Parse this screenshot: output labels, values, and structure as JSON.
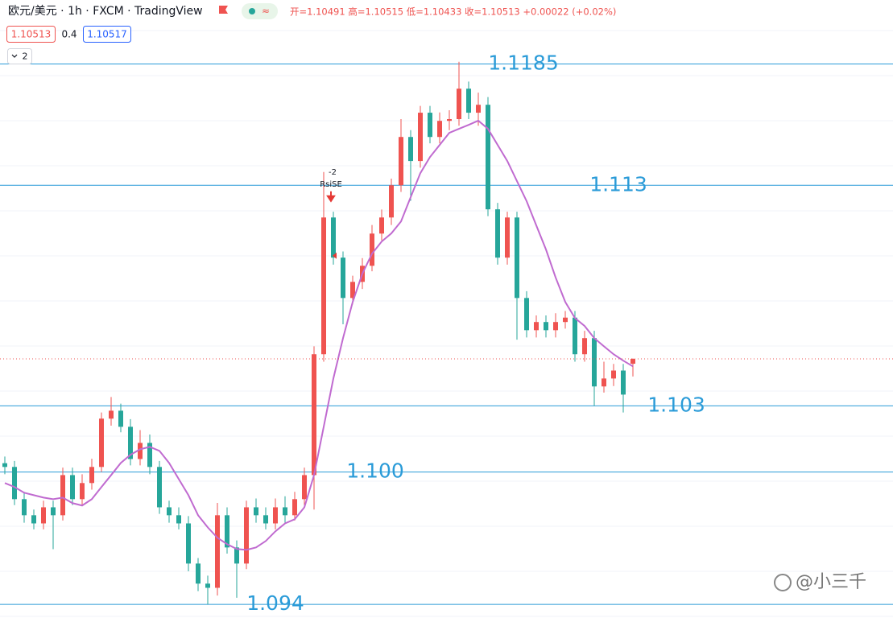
{
  "chart_data": {
    "type": "candlestick",
    "title": "欧元/美元 · 1h · FXCM · TradingView",
    "ohlc_text": "开=1.10491 高=1.10515 低=1.10433 收=1.10513 +0.00022 (+0.02%)",
    "bid": 1.10513,
    "spread": 0.4,
    "ask": 1.10517,
    "indicator_count": 2,
    "signal": {
      "value": -2,
      "label": "RsiSE"
    },
    "open": [
      1.1004,
      1.10023,
      1.09877,
      1.09804,
      1.09767,
      1.0984,
      1.09804,
      1.09986,
      1.09877,
      1.0995,
      1.10023,
      1.10242,
      1.10278,
      1.10205,
      1.10059,
      1.10132,
      1.10023,
      1.0984,
      1.09804,
      1.09767,
      1.09585,
      1.09494,
      1.09475,
      1.09804,
      1.09658,
      1.09585,
      1.0984,
      1.09804,
      1.09767,
      1.0984,
      1.09804,
      1.09877,
      1.09986,
      1.10534,
      1.11154,
      1.10972,
      1.10789,
      1.10862,
      1.10935,
      1.11081,
      1.11154,
      1.113,
      1.11519,
      1.1141,
      1.11629,
      1.11519,
      1.11592,
      1.116,
      1.11738,
      1.11629,
      1.11665,
      1.11191,
      1.10972,
      1.11154,
      1.10789,
      1.10643,
      1.1068,
      1.10643,
      1.1068,
      1.107,
      1.10534,
      1.10607,
      1.10388,
      1.10424,
      1.1046,
      1.10491
    ],
    "high": [
      1.1007,
      1.1005,
      1.0991,
      1.0983,
      1.0987,
      1.0987,
      1.1002,
      1.1002,
      1.0999,
      1.1006,
      1.1027,
      1.1034,
      1.1031,
      1.1024,
      1.1019,
      1.1017,
      1.1005,
      1.0987,
      1.0984,
      1.098,
      1.0961,
      1.0953,
      1.0986,
      1.0984,
      1.0969,
      1.0987,
      1.0988,
      1.0984,
      1.0988,
      1.0989,
      1.0991,
      1.1002,
      1.1057,
      1.1136,
      1.1118,
      1.11,
      1.1089,
      1.1097,
      1.1112,
      1.1119,
      1.1133,
      1.116,
      1.1155,
      1.1166,
      1.1166,
      1.1163,
      1.1164,
      1.1186,
      1.1177,
      1.1172,
      1.117,
      1.1122,
      1.1118,
      1.1118,
      1.1082,
      1.1071,
      1.1071,
      1.1072,
      1.1073,
      1.1073,
      1.1064,
      1.1064,
      1.105,
      1.1049,
      1.1049,
      1.10515
    ],
    "low": [
      1.0999,
      1.0985,
      1.0977,
      1.0974,
      1.0974,
      1.0965,
      1.0978,
      1.0985,
      1.0985,
      1.0992,
      1.1,
      1.1021,
      1.1018,
      1.1003,
      1.1003,
      1.0999,
      1.0981,
      1.0977,
      1.0974,
      1.0955,
      1.0946,
      1.094,
      1.0944,
      1.0963,
      1.0943,
      1.0956,
      1.0977,
      1.0974,
      1.0974,
      1.0977,
      1.0978,
      1.0985,
      1.0983,
      1.105,
      1.1094,
      1.1067,
      1.1076,
      1.1083,
      1.1091,
      1.1105,
      1.1112,
      1.1127,
      1.1123,
      1.1138,
      1.1149,
      1.1149,
      1.1155,
      1.1157,
      1.116,
      1.1157,
      1.1116,
      1.1094,
      1.1094,
      1.106,
      1.1061,
      1.1061,
      1.1061,
      1.1061,
      1.1065,
      1.105,
      1.105,
      1.103,
      1.1036,
      1.1039,
      1.1027,
      1.10433
    ],
    "close": [
      1.10023,
      1.09877,
      1.09804,
      1.09767,
      1.0984,
      1.09804,
      1.09986,
      1.09877,
      1.0995,
      1.10023,
      1.10242,
      1.10278,
      1.10205,
      1.10059,
      1.10132,
      1.10023,
      1.0984,
      1.09804,
      1.09767,
      1.09585,
      1.09494,
      1.09475,
      1.09804,
      1.09658,
      1.09585,
      1.0984,
      1.09804,
      1.09767,
      1.0984,
      1.09804,
      1.09877,
      1.09986,
      1.10534,
      1.11154,
      1.10972,
      1.10789,
      1.10862,
      1.10935,
      1.11081,
      1.11154,
      1.113,
      1.11519,
      1.1141,
      1.11629,
      1.11519,
      1.11592,
      1.116,
      1.11738,
      1.11629,
      1.11665,
      1.11191,
      1.10972,
      1.11154,
      1.10789,
      1.10643,
      1.1068,
      1.10643,
      1.1068,
      1.107,
      1.10534,
      1.10607,
      1.10388,
      1.10424,
      1.1046,
      1.10351,
      1.10513
    ],
    "ma": {
      "color": "#c06bd0",
      "values": [
        1.0995,
        1.09932,
        1.09906,
        1.09895,
        1.09884,
        1.09877,
        1.09884,
        1.09859,
        1.09848,
        1.09877,
        1.09932,
        1.09986,
        1.10041,
        1.10078,
        1.10103,
        1.10114,
        1.10096,
        1.10041,
        1.09968,
        1.09895,
        1.09804,
        1.09749,
        1.09702,
        1.09673,
        1.09651,
        1.09647,
        1.09658,
        1.09687,
        1.09731,
        1.09767,
        1.09786,
        1.0984,
        1.09986,
        1.10205,
        1.10424,
        1.10607,
        1.10771,
        1.10899,
        1.1099,
        1.11045,
        1.11082,
        1.11136,
        1.11246,
        1.11355,
        1.11428,
        1.11483,
        1.11538,
        1.11556,
        1.11574,
        1.11593,
        1.11556,
        1.11483,
        1.1141,
        1.11319,
        1.11228,
        1.11118,
        1.11009,
        1.10882,
        1.10771,
        1.10698,
        1.10662,
        1.10607,
        1.1057,
        1.10534,
        1.10505,
        1.10479
      ]
    },
    "levels": [
      1.1185,
      1.113,
      1.103,
      {
        "value": 1.1,
        "label": "1.100"
      },
      1.094
    ],
    "level_color": "#2a9bd8",
    "up_color": "#ef5350",
    "down_color": "#26a69a",
    "ylim": [
      1.0932,
      1.1214
    ],
    "watermark": "@小三千"
  }
}
